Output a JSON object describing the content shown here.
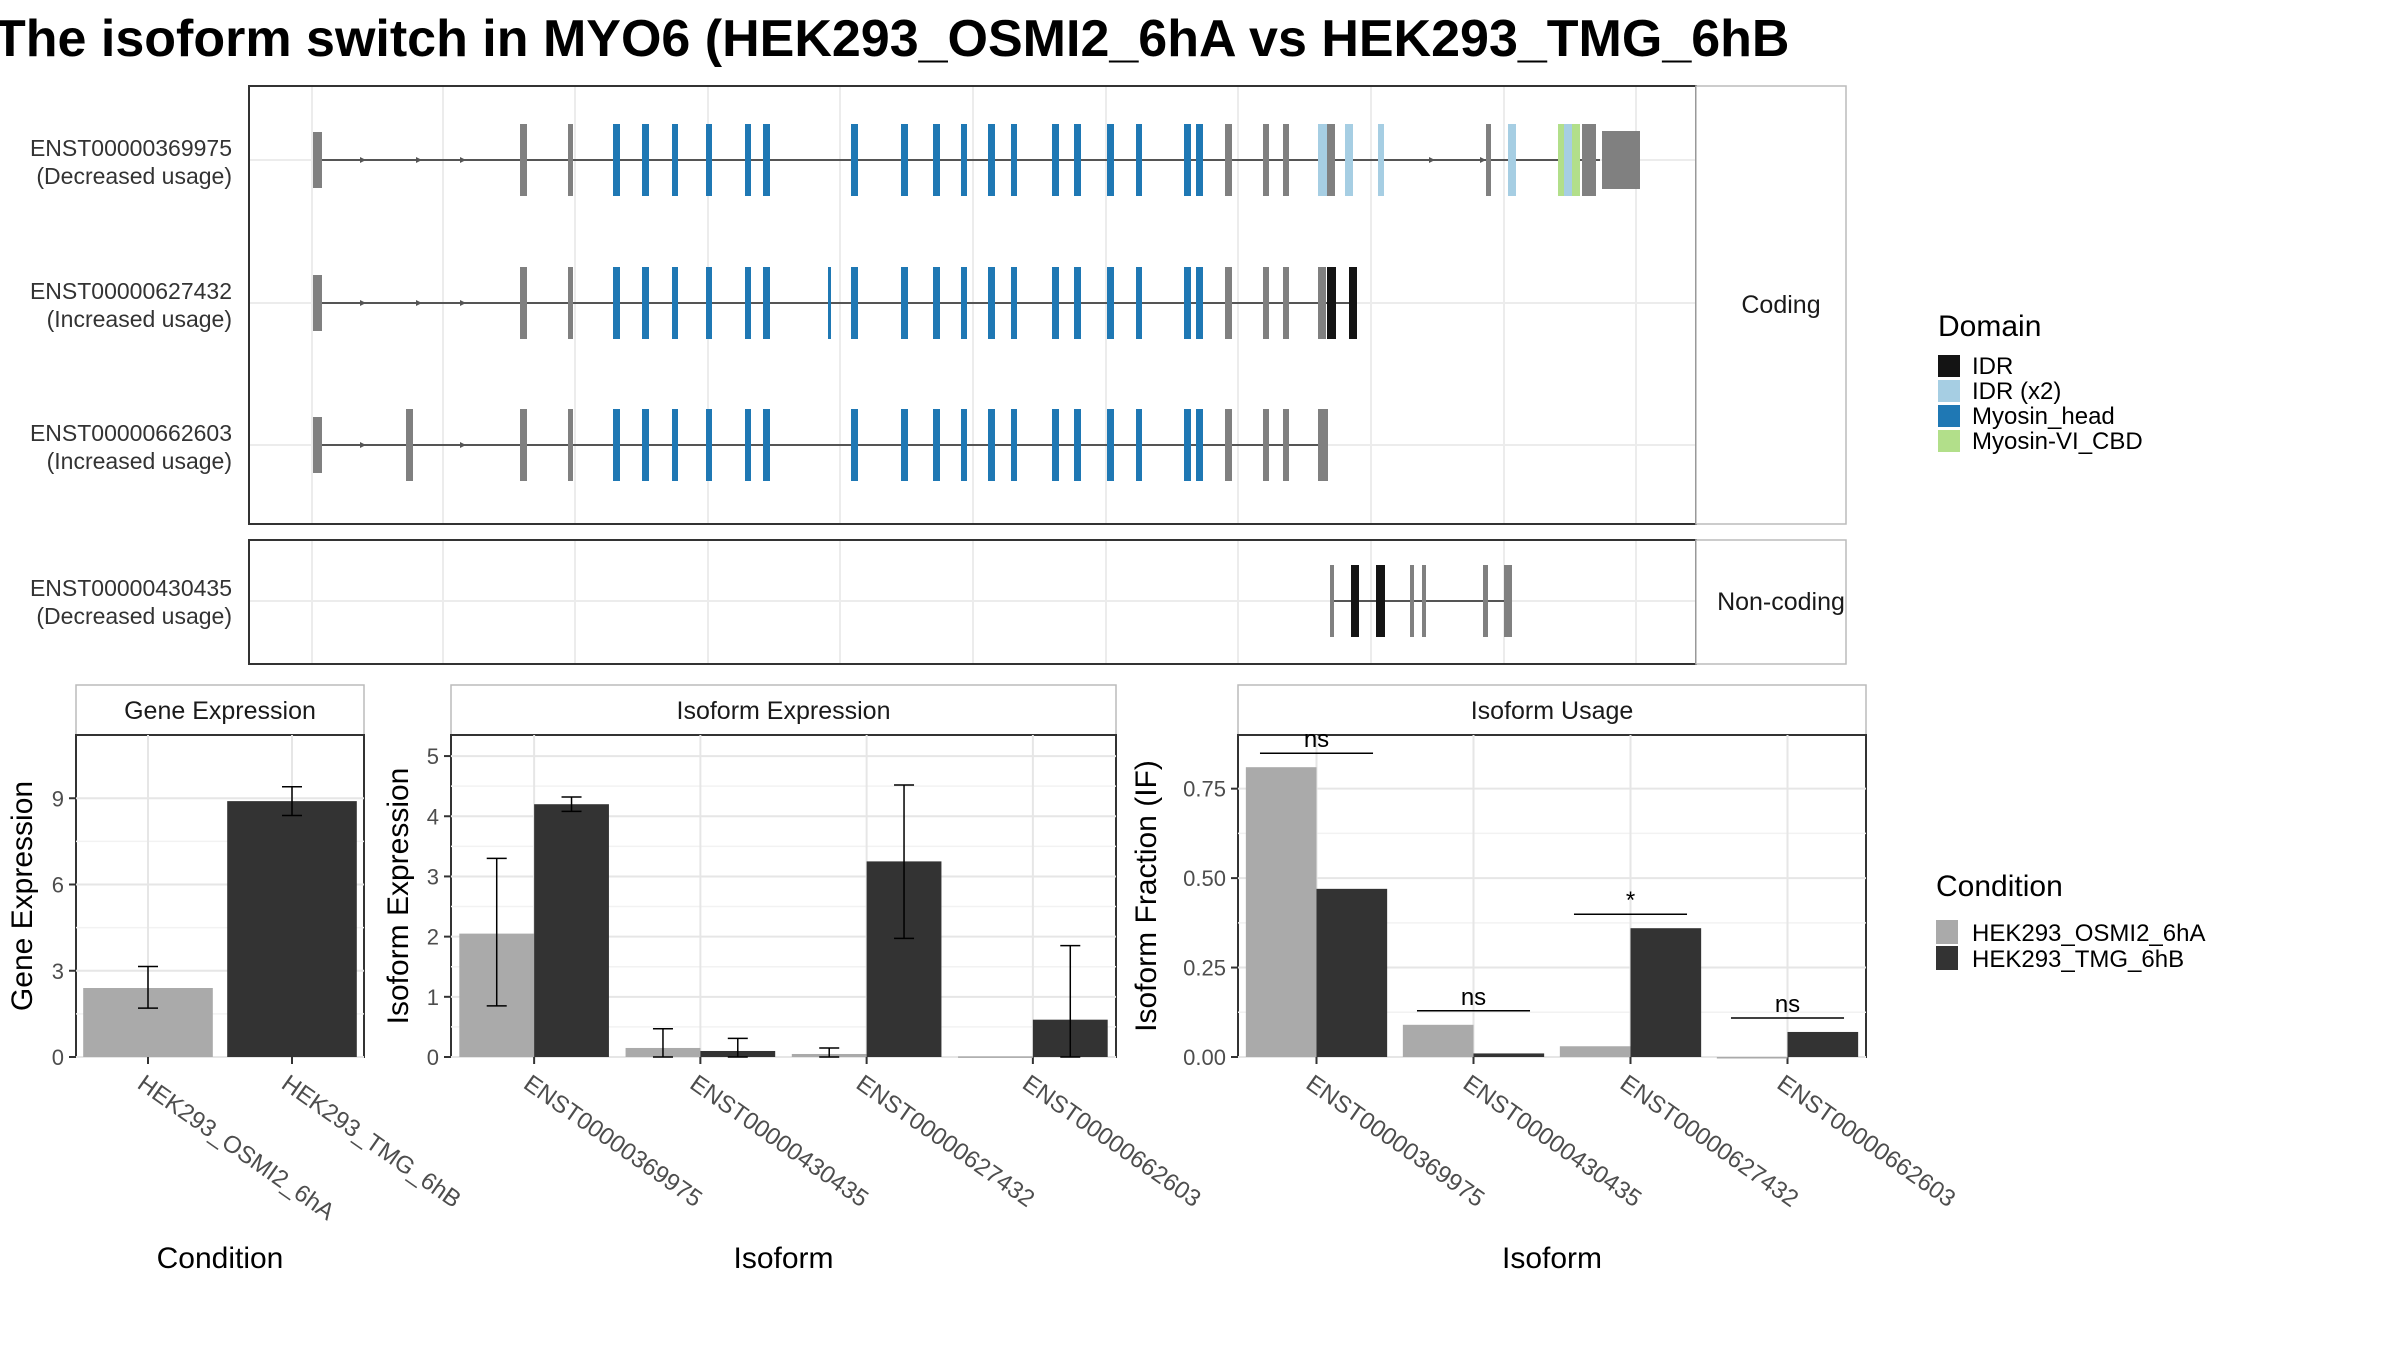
{
  "title": "The isoform switch in MYO6 (HEK293_OSMI2_6hA vs HEK293_TMG_6hB",
  "transcript_panel": {
    "facets": [
      "Coding",
      "Non-coding"
    ],
    "intron_color": "#555555",
    "domain_legend": {
      "title": "Domain",
      "items": [
        {
          "label": "IDR",
          "color": "#141414"
        },
        {
          "label": "IDR (x2)",
          "color": "#a6cee3"
        },
        {
          "label": "Myosin_head",
          "color": "#1f78b4"
        },
        {
          "label": "Myosin-VI_CBD",
          "color": "#b2df8a"
        }
      ]
    },
    "non_domain_exon_color": "#808080",
    "transcripts": [
      {
        "id": "ENST00000369975",
        "status": "(Decreased usage)",
        "facet": "Coding"
      },
      {
        "id": "ENST00000627432",
        "status": "(Increased usage)",
        "facet": "Coding"
      },
      {
        "id": "ENST00000662603",
        "status": "(Increased usage)",
        "facet": "Coding"
      },
      {
        "id": "ENST00000430435",
        "status": "(Decreased usage)",
        "facet": "Non-coding"
      }
    ]
  },
  "condition_legend": {
    "title": "Condition",
    "items": [
      {
        "label": "HEK293_OSMI2_6hA",
        "color": "#aaaaaa"
      },
      {
        "label": "HEK293_TMG_6hB",
        "color": "#333333"
      }
    ]
  },
  "chart_data": [
    {
      "type": "bar",
      "title": "Gene Expression",
      "xlabel": "Condition",
      "ylabel": "Gene Expression",
      "categories": [
        "HEK293_OSMI2_6hA",
        "HEK293_TMG_6hB"
      ],
      "values": [
        2.4,
        8.9
      ],
      "error_low": [
        1.7,
        8.4
      ],
      "error_high": [
        3.15,
        9.4
      ],
      "ylim": [
        0,
        11.2
      ],
      "yticks": [
        0,
        3,
        6,
        9
      ]
    },
    {
      "type": "bar",
      "title": "Isoform Expression",
      "xlabel": "Isoform",
      "ylabel": "Isoform Expression",
      "categories": [
        "ENST00000369975",
        "ENST00000430435",
        "ENST00000627432",
        "ENST00000662603"
      ],
      "ylim": [
        0,
        5.35
      ],
      "yticks": [
        0,
        1,
        2,
        3,
        4,
        5
      ],
      "series": [
        {
          "name": "HEK293_OSMI2_6hA",
          "values": [
            2.05,
            0.15,
            0.05,
            0.01
          ],
          "error_low": [
            0.85,
            0.0,
            0.0,
            0.0
          ],
          "error_high": [
            3.3,
            0.47,
            0.15,
            0.0
          ]
        },
        {
          "name": "HEK293_TMG_6hB",
          "values": [
            4.2,
            0.1,
            3.25,
            0.62
          ],
          "error_low": [
            4.08,
            0.0,
            1.97,
            0.0
          ],
          "error_high": [
            4.32,
            0.31,
            4.52,
            1.85
          ]
        }
      ]
    },
    {
      "type": "bar",
      "title": "Isoform Usage",
      "xlabel": "Isoform",
      "ylabel": "Isoform Fraction (IF)",
      "categories": [
        "ENST00000369975",
        "ENST00000430435",
        "ENST00000627432",
        "ENST00000662603"
      ],
      "ylim": [
        0,
        0.9
      ],
      "yticks": [
        0.0,
        0.25,
        0.5,
        0.75
      ],
      "ytick_labels": [
        "0.00",
        "0.25",
        "0.50",
        "0.75"
      ],
      "series": [
        {
          "name": "HEK293_OSMI2_6hA",
          "values": [
            0.81,
            0.09,
            0.03,
            0.0
          ]
        },
        {
          "name": "HEK293_TMG_6hB",
          "values": [
            0.47,
            0.01,
            0.36,
            0.07
          ]
        }
      ],
      "significance": [
        "ns",
        "ns",
        "*",
        "ns"
      ]
    }
  ]
}
